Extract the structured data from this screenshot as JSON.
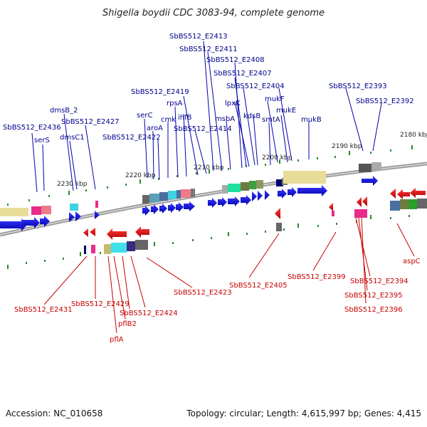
{
  "title": "Shigella boydii CDC 3083-94, complete genome",
  "footer": {
    "accession": "Accession: NC_010658",
    "topology": "Topology: circular; Length: 4,615,997 bp; Genes: 4,415"
  },
  "ticks": [
    "2230 kbp",
    "2220 kbp",
    "2210 kbp",
    "2200 kbp",
    "2190 kbp",
    "2180 kbp"
  ],
  "forward_labels": [
    "SbBS512_E2413",
    "SbBS512_E2411",
    "SbBS512_E2408",
    "SbBS512_E2407",
    "SbBS512_E2419",
    "lpxK",
    "SbBS512_E2404",
    "mukF",
    "SbBS512_E2393",
    "SbBS512_E2392",
    "dmsB_2",
    "serC",
    "rpsA",
    "kdsB",
    "mukE",
    "SbBS512_E2436",
    "SbBS512_E2427",
    "cmk",
    "ihfB",
    "msbA",
    "smtA",
    "mukB",
    "serS",
    "dmsC1",
    "aroA",
    "SbBS512_E2414",
    "SbBS512_E2422"
  ],
  "reverse_labels": [
    "SbBS512_E2399",
    "aspC",
    "SbBS512_E2394",
    "SbBS512_E2405",
    "SbBS512_E2395",
    "SbBS512_E2423",
    "SbBS512_E2396",
    "SbBS512_E2431",
    "SbBS512_E2429",
    "SbBS512_E2424",
    "pflB2",
    "pflA"
  ],
  "colors": {
    "forward_gene": "#0000dd",
    "reverse_gene": "#dd0000",
    "forward_label": "#00008b",
    "reverse_label": "#c80000",
    "backbone": "#888888",
    "tick_green": "#2a8a2a"
  }
}
